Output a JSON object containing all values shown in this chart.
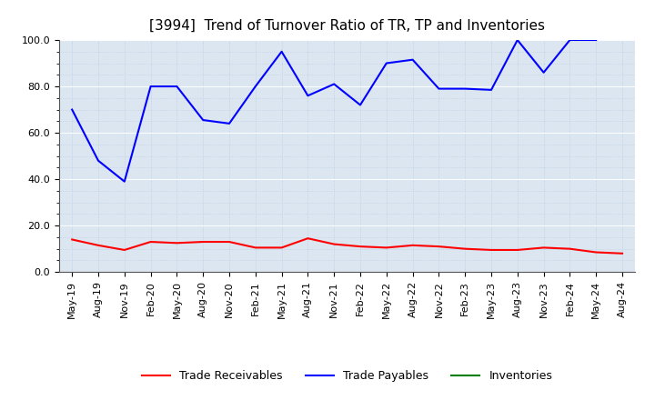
{
  "title": "[3994]  Trend of Turnover Ratio of TR, TP and Inventories",
  "xlabels": [
    "May-19",
    "Aug-19",
    "Nov-19",
    "Feb-20",
    "May-20",
    "Aug-20",
    "Nov-20",
    "Feb-21",
    "May-21",
    "Aug-21",
    "Nov-21",
    "Feb-22",
    "May-22",
    "Aug-22",
    "Nov-22",
    "Feb-23",
    "May-23",
    "Aug-23",
    "Nov-23",
    "Feb-24",
    "May-24",
    "Aug-24"
  ],
  "trade_receivables": [
    14.0,
    11.5,
    9.5,
    13.0,
    12.5,
    13.0,
    13.0,
    10.5,
    10.5,
    14.5,
    12.0,
    11.0,
    10.5,
    11.5,
    11.0,
    10.0,
    9.5,
    9.5,
    10.5,
    10.0,
    8.5,
    8.0
  ],
  "trade_payables": [
    70.0,
    48.0,
    39.0,
    80.0,
    80.0,
    65.5,
    64.0,
    80.0,
    95.0,
    76.0,
    81.0,
    72.0,
    90.0,
    91.5,
    79.0,
    79.0,
    78.5,
    100.0,
    86.0,
    100.0,
    100.0,
    null
  ],
  "inventories": [
    null,
    null,
    null,
    null,
    null,
    null,
    null,
    null,
    null,
    null,
    null,
    null,
    null,
    null,
    null,
    null,
    null,
    null,
    null,
    null,
    null,
    null
  ],
  "tr_color": "#ff0000",
  "tp_color": "#0000ff",
  "inv_color": "#008000",
  "ylim": [
    0.0,
    100.0
  ],
  "yticks": [
    0.0,
    20.0,
    40.0,
    60.0,
    80.0,
    100.0
  ],
  "background_color": "#ffffff",
  "plot_bg_color": "#dce6f1",
  "grid_color": "#ffffff",
  "grid_minor_color": "#b8cce4",
  "title_fontsize": 11,
  "tick_fontsize": 8,
  "legend_labels": [
    "Trade Receivables",
    "Trade Payables",
    "Inventories"
  ],
  "legend_fontsize": 9
}
